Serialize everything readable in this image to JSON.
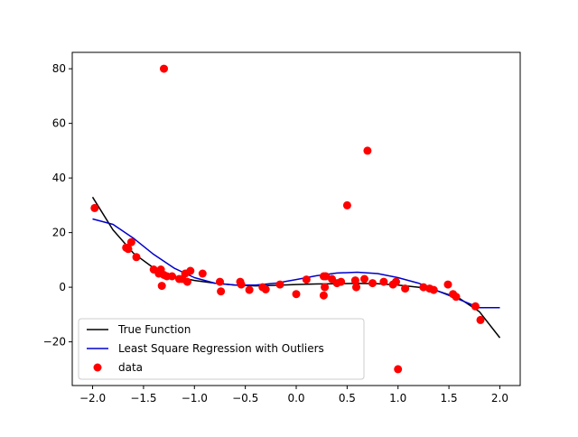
{
  "chart_data": {
    "type": "line",
    "title": "",
    "xlabel": "",
    "ylabel": "",
    "xlim": [
      -2.2,
      2.2
    ],
    "ylim": [
      -36,
      86
    ],
    "grid": false,
    "legend_placement": "lower-left",
    "x_ticks": [
      -2.0,
      -1.5,
      -1.0,
      -0.5,
      0.0,
      0.5,
      1.0,
      1.5,
      2.0
    ],
    "x_tick_labels": [
      "−2.0",
      "−1.5",
      "−1.0",
      "−0.5",
      "0.0",
      "0.5",
      "1.0",
      "1.5",
      "2.0"
    ],
    "y_ticks": [
      -20,
      0,
      20,
      40,
      60,
      80
    ],
    "y_tick_labels": [
      "−20",
      "0",
      "20",
      "40",
      "60",
      "80"
    ],
    "series": [
      {
        "name": "True Function",
        "kind": "line",
        "color": "#000000",
        "x": [
          -2.0,
          -1.8,
          -1.6,
          -1.4,
          -1.2,
          -1.0,
          -0.8,
          -0.6,
          -0.4,
          -0.2,
          0.0,
          0.2,
          0.4,
          0.6,
          0.8,
          1.0,
          1.2,
          1.4,
          1.6,
          1.8,
          2.0
        ],
        "y": [
          33.0,
          21.0,
          12.5,
          7.0,
          4.0,
          2.5,
          1.5,
          0.8,
          0.5,
          0.7,
          1.0,
          1.2,
          1.3,
          1.4,
          1.3,
          0.8,
          0.0,
          -1.5,
          -4.0,
          -9.0,
          -18.5
        ]
      },
      {
        "name": "Least Square Regression with Outliers",
        "kind": "line",
        "color": "#0000cc",
        "x": [
          -2.0,
          -1.8,
          -1.6,
          -1.4,
          -1.2,
          -1.0,
          -0.8,
          -0.6,
          -0.4,
          -0.2,
          0.0,
          0.2,
          0.4,
          0.6,
          0.8,
          1.0,
          1.2,
          1.4,
          1.6,
          1.8,
          2.0
        ],
        "y": [
          25.0,
          23.0,
          18.0,
          12.0,
          7.0,
          3.5,
          1.5,
          0.8,
          0.8,
          1.5,
          2.8,
          4.2,
          5.2,
          5.5,
          5.0,
          3.5,
          1.5,
          -1.5,
          -4.5,
          -7.5,
          -7.5
        ]
      },
      {
        "name": "data",
        "kind": "scatter",
        "color": "#ff0000",
        "x": [
          -1.98,
          -1.3,
          -1.67,
          -1.65,
          -1.62,
          -1.57,
          -1.4,
          -1.35,
          -1.33,
          -1.32,
          -1.3,
          -1.27,
          -1.22,
          -1.15,
          -1.12,
          -1.09,
          -1.07,
          -1.04,
          -0.92,
          -0.75,
          -0.74,
          -0.55,
          -0.54,
          -0.46,
          -0.33,
          -0.3,
          -0.16,
          0.0,
          0.1,
          0.27,
          0.27,
          0.28,
          0.29,
          0.35,
          0.4,
          0.44,
          0.5,
          0.58,
          0.59,
          0.67,
          0.7,
          0.75,
          0.86,
          0.95,
          0.98,
          1.0,
          1.07,
          1.25,
          1.31,
          1.35,
          1.49,
          1.54,
          1.57,
          1.76,
          1.81
        ],
        "y": [
          29.0,
          80.0,
          14.5,
          14.0,
          16.5,
          11.0,
          6.5,
          5.0,
          6.5,
          0.5,
          4.5,
          4.0,
          4.0,
          3.0,
          3.0,
          5.0,
          2.0,
          6.0,
          5.0,
          2.0,
          -1.5,
          2.0,
          1.0,
          -1.0,
          0.0,
          -0.8,
          1.0,
          -2.5,
          2.8,
          -3.0,
          4.0,
          0.0,
          4.0,
          3.0,
          1.5,
          2.0,
          30.0,
          2.5,
          0.0,
          3.0,
          50.0,
          1.5,
          2.0,
          1.0,
          2.0,
          -30.0,
          -0.5,
          0.0,
          -0.5,
          -1.0,
          1.0,
          -2.5,
          -3.5,
          -7.0,
          -12.0
        ]
      }
    ]
  }
}
